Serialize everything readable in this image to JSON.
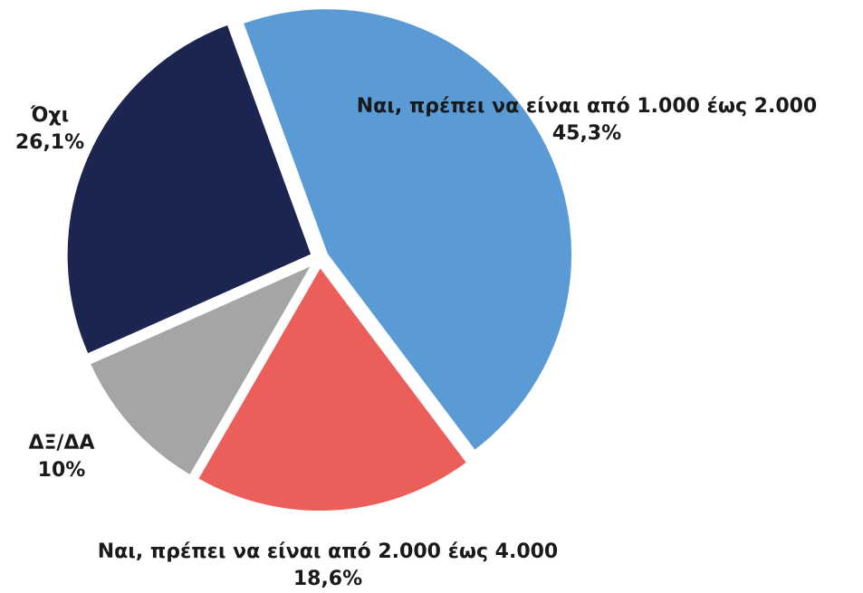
{
  "chart_data": {
    "type": "pie",
    "slices": [
      {
        "label": "Ναι, πρέπει να είναι από 1.000 έως 2.000",
        "value": 45.3,
        "value_label": "45,3%",
        "color": "#5b9bd5"
      },
      {
        "label": "Ναι, πρέπει να είναι από 2.000 έως 4.000",
        "value": 18.6,
        "value_label": "18,6%",
        "color": "#eb5e5a"
      },
      {
        "label": "ΔΞ/ΔΑ",
        "value": 10,
        "value_label": "10%",
        "color": "#a3a6a5"
      },
      {
        "label": "Όχι",
        "value": 26.1,
        "value_label": "26,1%",
        "color": "#1b2550"
      }
    ]
  }
}
